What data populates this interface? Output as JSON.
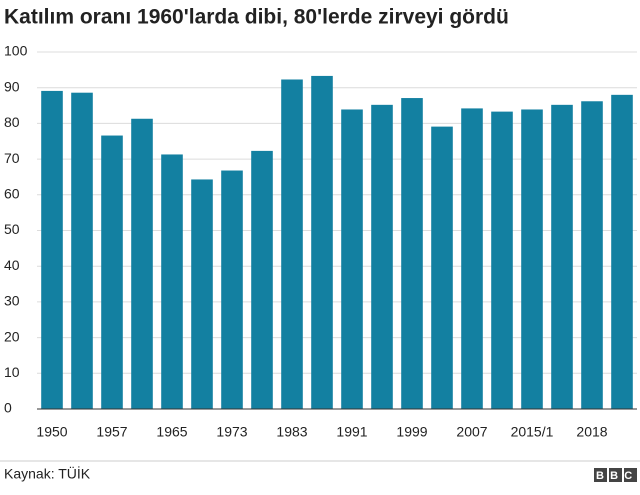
{
  "chart_data": {
    "type": "bar",
    "title": "Katılım oranı 1960'larda dibi, 80'lerde zirveyi gördü",
    "categories": [
      "1950",
      null,
      "1957",
      null,
      "1965",
      null,
      "1973",
      null,
      "1983",
      null,
      "1991",
      null,
      "1999",
      null,
      "2007",
      null,
      "2015/1",
      null,
      "2018",
      null
    ],
    "values": [
      89.1,
      88.6,
      76.6,
      81.3,
      71.3,
      64.3,
      66.8,
      72.3,
      92.3,
      93.3,
      83.9,
      85.2,
      87.1,
      79.1,
      84.2,
      83.3,
      83.9,
      85.2,
      86.2,
      88.0
    ],
    "color": "#1380a1",
    "ylim": [
      0,
      100
    ],
    "yticks": [
      0,
      10,
      20,
      30,
      40,
      50,
      60,
      70,
      80,
      90,
      100
    ],
    "grid": true,
    "source": "Kaynak: TÜİK",
    "brand": "BBC"
  }
}
